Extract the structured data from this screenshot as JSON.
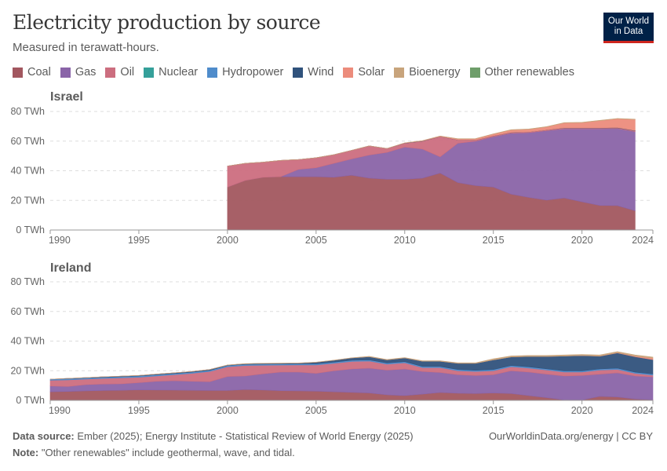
{
  "header": {
    "title": "Electricity production by source",
    "subtitle": "Measured in terawatt-hours.",
    "logo": "Our World in Data"
  },
  "legend": [
    {
      "name": "Coal",
      "color": "#a2575f"
    },
    {
      "name": "Gas",
      "color": "#8a64a8"
    },
    {
      "name": "Oil",
      "color": "#cc6e7f"
    },
    {
      "name": "Nuclear",
      "color": "#35a09a"
    },
    {
      "name": "Hydropower",
      "color": "#4f8ccb"
    },
    {
      "name": "Wind",
      "color": "#30527c"
    },
    {
      "name": "Solar",
      "color": "#ec8c7c"
    },
    {
      "name": "Bioenergy",
      "color": "#c8a47c"
    },
    {
      "name": "Other renewables",
      "color": "#6e9e6a"
    }
  ],
  "chart_data": [
    {
      "type": "area",
      "stacked": true,
      "title": "Israel",
      "ylabel": "",
      "xlabel": "",
      "xlim": [
        1990,
        2024
      ],
      "ylim": [
        0,
        80
      ],
      "yticks": [
        "0 TWh",
        "20 TWh",
        "40 TWh",
        "60 TWh",
        "80 TWh"
      ],
      "xticks": [
        "1990",
        "1995",
        "2000",
        "2005",
        "2010",
        "2015",
        "2020",
        "2024"
      ],
      "grid": true,
      "x": [
        2000,
        2001,
        2002,
        2003,
        2004,
        2005,
        2006,
        2007,
        2008,
        2009,
        2010,
        2011,
        2012,
        2013,
        2014,
        2015,
        2016,
        2017,
        2018,
        2019,
        2020,
        2021,
        2022,
        2023
      ],
      "series": [
        {
          "name": "Coal",
          "values": [
            29,
            33.5,
            35.6,
            36,
            36,
            36,
            35.6,
            37,
            35,
            34.3,
            34.2,
            35,
            38.4,
            32,
            30,
            29,
            24.2,
            22,
            20.2,
            21.6,
            19,
            16.6,
            16.5,
            13
          ]
        },
        {
          "name": "Gas",
          "values": [
            0,
            0,
            0,
            0,
            4.9,
            6,
            9.4,
            11,
            15.6,
            18.1,
            21.8,
            19.7,
            11,
            26.6,
            30,
            34,
            41.1,
            43.7,
            46.8,
            46.7,
            49.3,
            51.7,
            52,
            53.4
          ]
        },
        {
          "name": "Oil",
          "values": [
            14.2,
            11.5,
            10.2,
            11,
            6.7,
            6.8,
            5.8,
            5.8,
            6.2,
            2.6,
            2.6,
            5.3,
            13.6,
            2.2,
            0.6,
            0.5,
            0.5,
            0.5,
            0.5,
            0.5,
            0.5,
            0.5,
            0.5,
            0.5
          ]
        },
        {
          "name": "Nuclear",
          "values": [
            0,
            0,
            0,
            0,
            0,
            0,
            0,
            0,
            0,
            0,
            0,
            0,
            0,
            0,
            0,
            0,
            0,
            0,
            0,
            0,
            0,
            0,
            0,
            0
          ]
        },
        {
          "name": "Hydropower",
          "values": [
            0,
            0,
            0,
            0,
            0,
            0,
            0,
            0,
            0,
            0,
            0,
            0,
            0,
            0,
            0,
            0,
            0,
            0,
            0,
            0,
            0,
            0,
            0,
            0
          ]
        },
        {
          "name": "Wind",
          "values": [
            0,
            0,
            0,
            0,
            0,
            0,
            0,
            0,
            0,
            0,
            0.1,
            0.1,
            0.1,
            0.1,
            0.1,
            0.1,
            0.1,
            0.1,
            0.1,
            0.2,
            0.2,
            0.2,
            0.2,
            0.2
          ]
        },
        {
          "name": "Solar",
          "values": [
            0,
            0,
            0,
            0,
            0,
            0,
            0,
            0,
            0,
            0,
            0.1,
            0.2,
            0.3,
            0.6,
            0.9,
            1.2,
            1.6,
            1.7,
            2.0,
            3.3,
            3.5,
            4.8,
            5.9,
            7.5
          ]
        },
        {
          "name": "Bioenergy",
          "values": [
            0,
            0,
            0,
            0,
            0,
            0,
            0,
            0,
            0,
            0,
            0,
            0,
            0,
            0.1,
            0.1,
            0.1,
            0.2,
            0.2,
            0.2,
            0.2,
            0.2,
            0.2,
            0.2,
            0.2
          ]
        },
        {
          "name": "Other renewables",
          "values": [
            0,
            0,
            0,
            0,
            0,
            0,
            0,
            0,
            0,
            0,
            0,
            0,
            0,
            0,
            0,
            0,
            0,
            0,
            0,
            0,
            0,
            0,
            0,
            0
          ]
        }
      ]
    },
    {
      "type": "area",
      "stacked": true,
      "title": "Ireland",
      "ylabel": "",
      "xlabel": "",
      "xlim": [
        1990,
        2024
      ],
      "ylim": [
        0,
        80
      ],
      "yticks": [
        "0 TWh",
        "20 TWh",
        "40 TWh",
        "60 TWh",
        "80 TWh"
      ],
      "xticks": [
        "1990",
        "1995",
        "2000",
        "2005",
        "2010",
        "2015",
        "2020",
        "2024"
      ],
      "grid": true,
      "x": [
        1990,
        1991,
        1992,
        1993,
        1994,
        1995,
        1996,
        1997,
        1998,
        1999,
        2000,
        2001,
        2002,
        2003,
        2004,
        2005,
        2006,
        2007,
        2008,
        2009,
        2010,
        2011,
        2012,
        2013,
        2014,
        2015,
        2016,
        2017,
        2018,
        2019,
        2020,
        2021,
        2022,
        2023,
        2024
      ],
      "series": [
        {
          "name": "Coal",
          "values": [
            5.8,
            6.0,
            6.4,
            6.6,
            6.8,
            7.1,
            7.0,
            6.9,
            6.8,
            6.6,
            6.7,
            7.3,
            7.0,
            6.5,
            6.4,
            6.2,
            5.8,
            5.4,
            5.0,
            3.7,
            3.2,
            4.2,
            5.3,
            4.8,
            4.6,
            5.0,
            4.6,
            3.2,
            1.8,
            0.3,
            0.2,
            2.7,
            2.3,
            0.9,
            0.4
          ]
        },
        {
          "name": "Gas",
          "values": [
            3.9,
            3.4,
            4.2,
            4.4,
            4.4,
            4.9,
            5.9,
            6.4,
            6.1,
            6.0,
            9.4,
            9.2,
            10.9,
            12.6,
            12.7,
            12.0,
            14.2,
            15.8,
            16.8,
            16.7,
            18.0,
            15.3,
            13.5,
            12.5,
            12.2,
            12.3,
            15.4,
            15.9,
            15.9,
            16.2,
            16.6,
            15.0,
            16.3,
            15.6,
            15.5
          ]
        },
        {
          "name": "Oil",
          "values": [
            3.8,
            4.4,
            3.7,
            3.8,
            4.0,
            3.6,
            3.6,
            4.0,
            5.3,
            6.9,
            6.6,
            7.0,
            5.8,
            4.7,
            4.8,
            5.7,
            5.0,
            5.0,
            4.7,
            4.0,
            4.1,
            2.6,
            3.3,
            2.7,
            2.7,
            2.7,
            2.7,
            2.7,
            2.8,
            2.6,
            2.3,
            2.7,
            2.3,
            1.7,
            1.1
          ]
        },
        {
          "name": "Nuclear",
          "values": [
            0,
            0,
            0,
            0,
            0,
            0,
            0,
            0,
            0,
            0,
            0,
            0,
            0,
            0,
            0,
            0,
            0,
            0,
            0,
            0,
            0,
            0,
            0,
            0,
            0,
            0,
            0,
            0,
            0,
            0,
            0,
            0,
            0,
            0,
            0
          ]
        },
        {
          "name": "Hydropower",
          "values": [
            0.8,
            0.8,
            0.8,
            0.8,
            0.8,
            0.8,
            0.8,
            0.8,
            0.8,
            0.8,
            0.8,
            0.8,
            0.8,
            0.8,
            0.8,
            0.8,
            0.8,
            0.8,
            0.8,
            0.8,
            0.8,
            0.8,
            0.8,
            0.8,
            0.8,
            0.8,
            0.8,
            0.8,
            0.8,
            0.8,
            0.8,
            0.8,
            0.8,
            0.8,
            0.8
          ]
        },
        {
          "name": "Wind",
          "values": [
            0,
            0.2,
            0.2,
            0.3,
            0.3,
            0.4,
            0.4,
            0.5,
            0.5,
            0.5,
            0.3,
            0.4,
            0.4,
            0.4,
            0.4,
            1.0,
            1.2,
            1.6,
            2.1,
            2.1,
            2.5,
            3.5,
            3.5,
            4.2,
            4.7,
            6.5,
            5.8,
            7.0,
            8.3,
            10.0,
            10.3,
            8.6,
            10.3,
            10.4,
            9.7
          ]
        },
        {
          "name": "Solar",
          "values": [
            0,
            0,
            0,
            0,
            0,
            0,
            0,
            0,
            0,
            0,
            0,
            0,
            0,
            0,
            0,
            0,
            0,
            0,
            0,
            0,
            0,
            0,
            0,
            0,
            0,
            0,
            0,
            0,
            0,
            0,
            0.1,
            0.1,
            0.2,
            0.5,
            1.0
          ]
        },
        {
          "name": "Bioenergy",
          "values": [
            0,
            0,
            0,
            0,
            0,
            0,
            0,
            0,
            0,
            0,
            0.1,
            0.1,
            0.1,
            0.1,
            0.1,
            0.1,
            0.1,
            0.1,
            0.3,
            0.3,
            0.3,
            0.3,
            0.3,
            0.3,
            0.3,
            0.7,
            0.7,
            0.7,
            0.7,
            0.7,
            0.7,
            0.7,
            0.7,
            0.7,
            0.7
          ]
        },
        {
          "name": "Other renewables",
          "values": [
            0,
            0,
            0,
            0,
            0,
            0,
            0,
            0,
            0,
            0,
            0,
            0,
            0,
            0,
            0,
            0,
            0,
            0,
            0,
            0,
            0,
            0,
            0,
            0,
            0,
            0,
            0,
            0,
            0,
            0,
            0,
            0,
            0,
            0,
            0
          ]
        }
      ]
    }
  ],
  "footer": {
    "source_label": "Data source:",
    "source": "Ember (2025); Energy Institute - Statistical Review of World Energy (2025)",
    "note_label": "Note:",
    "note": "\"Other renewables\" include geothermal, wave, and tidal.",
    "credit": "OurWorldinData.org/energy | CC BY"
  }
}
